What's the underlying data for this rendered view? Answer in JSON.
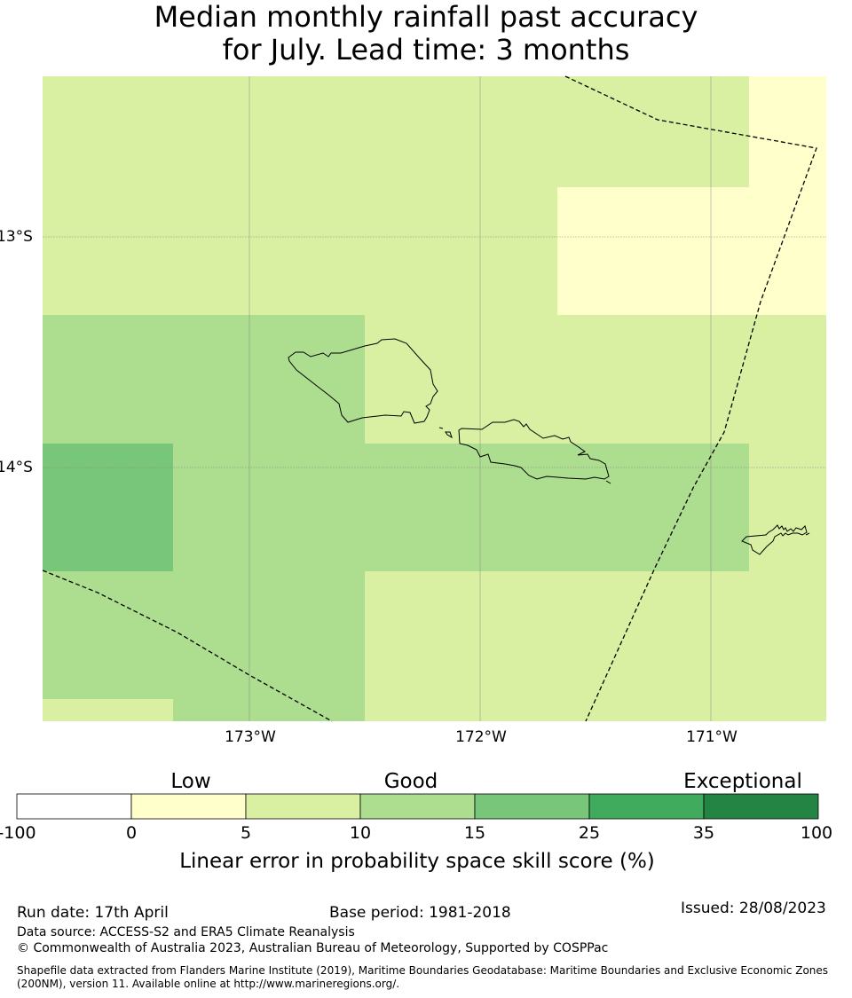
{
  "title": {
    "line1": "Median monthly rainfall past accuracy",
    "line2": "for July. Lead time: 3 months"
  },
  "map": {
    "lat_labels": [
      "13°S",
      "14°S"
    ],
    "lon_labels": [
      "173°W",
      "172°W",
      "171°W"
    ],
    "colors": {
      "c0_5": "#ffffcc",
      "c5_10": "#d9f0a3",
      "c10_15": "#addd8e",
      "c15_25": "#78c679",
      "c25_35": "#41ab5d",
      "c35_100": "#238443",
      "c_neg": "#ffffff"
    }
  },
  "legend": {
    "categories": [
      "Low",
      "Good",
      "Exceptional"
    ],
    "ticks": [
      "-100",
      "0",
      "5",
      "10",
      "15",
      "25",
      "35",
      "100"
    ],
    "caption": "Linear error in probability space skill score (%)"
  },
  "footer": {
    "run_date": "Run date: 17th April",
    "base_period": "Base period: 1981-2018",
    "issued": "Issued: 28/08/2023",
    "data_source": "Data source: ACCESS-S2 and ERA5 Climate Reanalysis",
    "copyright": "© Commonwealth of Australia 2023, Australian Bureau of Meteorology, Supported by COSPPac",
    "shapefile": "Shapefile data extracted from Flanders Marine Institute (2019), Maritime Boundaries Geodatabase: Maritime Boundaries and Exclusive Economic Zones (200NM), version 11. Available online at http://www.marineregions.org/."
  }
}
